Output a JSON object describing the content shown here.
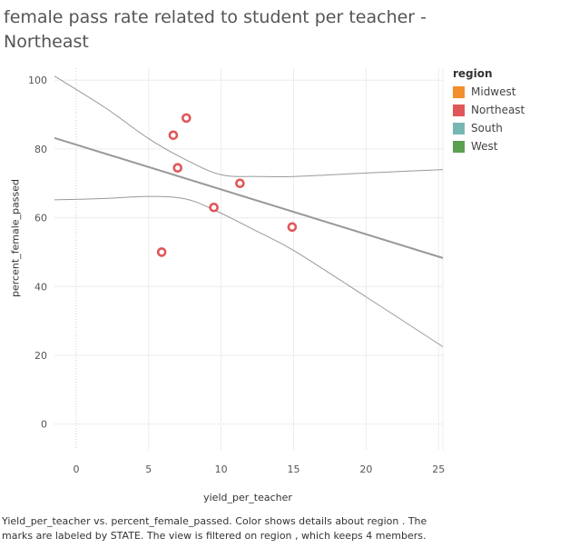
{
  "chart_data": {
    "type": "scatter",
    "title": "female pass rate related to student per teacher - Northeast",
    "xlabel": "yield_per_teacher",
    "ylabel": "percent_female_passed",
    "xlim": [
      -1.5,
      25.3
    ],
    "ylim": [
      -7.5,
      103.5
    ],
    "x_ticks": [
      0,
      5,
      10,
      15,
      20,
      25
    ],
    "y_ticks": [
      0,
      20,
      40,
      60,
      80,
      100
    ],
    "grid": true,
    "legend": {
      "title": "region",
      "placement": "right",
      "entries": [
        {
          "label": "Midwest",
          "color": "#f28e2b"
        },
        {
          "label": "Northeast",
          "color": "#e15759"
        },
        {
          "label": "South",
          "color": "#76b7b2"
        },
        {
          "label": "West",
          "color": "#59a14f"
        }
      ]
    },
    "series": [
      {
        "name": "Northeast",
        "color": "#e15759",
        "points": [
          {
            "x": 5.9,
            "y": 50
          },
          {
            "x": 6.7,
            "y": 84
          },
          {
            "x": 7.0,
            "y": 74.5
          },
          {
            "x": 7.6,
            "y": 89
          },
          {
            "x": 9.5,
            "y": 63
          },
          {
            "x": 11.3,
            "y": 70
          },
          {
            "x": 14.9,
            "y": 57.3
          }
        ]
      }
    ],
    "trend_line": {
      "color": "#999999",
      "x": [
        -1.5,
        25.3
      ],
      "y": [
        83.2,
        48.3
      ]
    },
    "confidence_band": {
      "color": "#999999",
      "upper": [
        [
          -1.5,
          101.2
        ],
        [
          2,
          92
        ],
        [
          5,
          83
        ],
        [
          7.5,
          77
        ],
        [
          10,
          72.5
        ],
        [
          12.5,
          72
        ],
        [
          15,
          72
        ],
        [
          20,
          73
        ],
        [
          25.3,
          74
        ]
      ],
      "lower": [
        [
          -1.5,
          65.2
        ],
        [
          2,
          65.6
        ],
        [
          5,
          66.2
        ],
        [
          7.5,
          65.5
        ],
        [
          9.5,
          62.3
        ],
        [
          12.5,
          56
        ],
        [
          15,
          50.5
        ],
        [
          20,
          37
        ],
        [
          25.3,
          22.5
        ]
      ]
    }
  },
  "caption": "Yield_per_teacher vs. percent_female_passed.  Color shows details about region . The marks are labeled by STATE. The view is filtered on region , which keeps 4 members."
}
